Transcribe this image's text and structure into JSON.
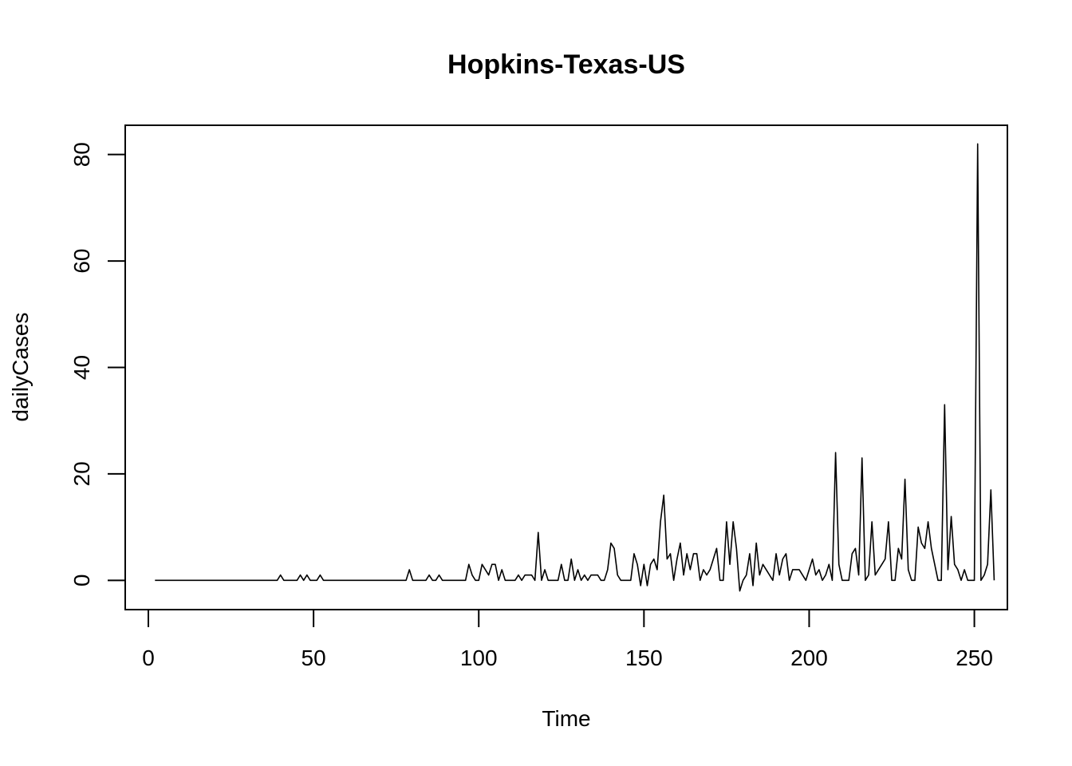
{
  "chart_data": {
    "type": "line",
    "title": "Hopkins-Texas-US",
    "xlabel": "Time",
    "ylabel": "dailyCases",
    "xlim": [
      -7,
      260
    ],
    "ylim": [
      -5.5,
      85.5
    ],
    "xticks": [
      0,
      50,
      100,
      150,
      200,
      250
    ],
    "yticks": [
      0,
      20,
      40,
      60,
      80
    ],
    "grid": false,
    "color": "#000000",
    "series": [
      {
        "x_start": 2,
        "values": [
          0,
          0,
          0,
          0,
          0,
          0,
          0,
          0,
          0,
          0,
          0,
          0,
          0,
          0,
          0,
          0,
          0,
          0,
          0,
          0,
          0,
          0,
          0,
          0,
          0,
          0,
          0,
          0,
          0,
          0,
          0,
          0,
          0,
          0,
          0,
          0,
          0,
          0,
          1,
          0,
          0,
          0,
          0,
          0,
          1,
          0,
          1,
          0,
          0,
          0,
          1,
          0,
          0,
          0,
          0,
          0,
          0,
          0,
          0,
          0,
          0,
          0,
          0,
          0,
          0,
          0,
          0,
          0,
          0,
          0,
          0,
          0,
          0,
          0,
          0,
          0,
          0,
          2,
          0,
          0,
          0,
          0,
          0,
          1,
          0,
          0,
          1,
          0,
          0,
          0,
          0,
          0,
          0,
          0,
          0,
          3,
          1,
          0,
          0,
          3,
          2,
          1,
          3,
          3,
          0,
          2,
          0,
          0,
          0,
          0,
          1,
          0,
          1,
          1,
          1,
          0,
          9,
          0,
          2,
          0,
          0,
          0,
          0,
          3,
          0,
          0,
          4,
          0,
          2,
          0,
          1,
          0,
          1,
          1,
          1,
          0,
          0,
          2,
          7,
          6,
          1,
          0,
          0,
          0,
          0,
          5,
          3,
          -1,
          3,
          -1,
          3,
          4,
          2,
          11,
          16,
          4,
          5,
          0,
          4,
          7,
          1,
          5,
          2,
          5,
          5,
          0,
          2,
          1,
          2,
          4,
          6,
          0,
          0,
          11,
          3,
          11,
          6,
          -2,
          0,
          1,
          5,
          -1,
          7,
          1,
          3,
          2,
          1,
          0,
          5,
          1,
          4,
          5,
          0,
          2,
          2,
          2,
          1,
          0,
          2,
          4,
          1,
          2,
          0,
          1,
          3,
          0,
          24,
          3,
          0,
          0,
          0,
          5,
          6,
          1,
          23,
          0,
          1,
          11,
          1,
          2,
          3,
          4,
          11,
          0,
          0,
          6,
          4,
          19,
          2,
          0,
          0,
          10,
          7,
          6,
          11,
          6,
          3,
          0,
          0,
          33,
          2,
          12,
          3,
          2,
          0,
          2,
          0,
          0,
          0,
          82,
          0,
          1,
          3,
          17,
          0
        ]
      }
    ]
  }
}
